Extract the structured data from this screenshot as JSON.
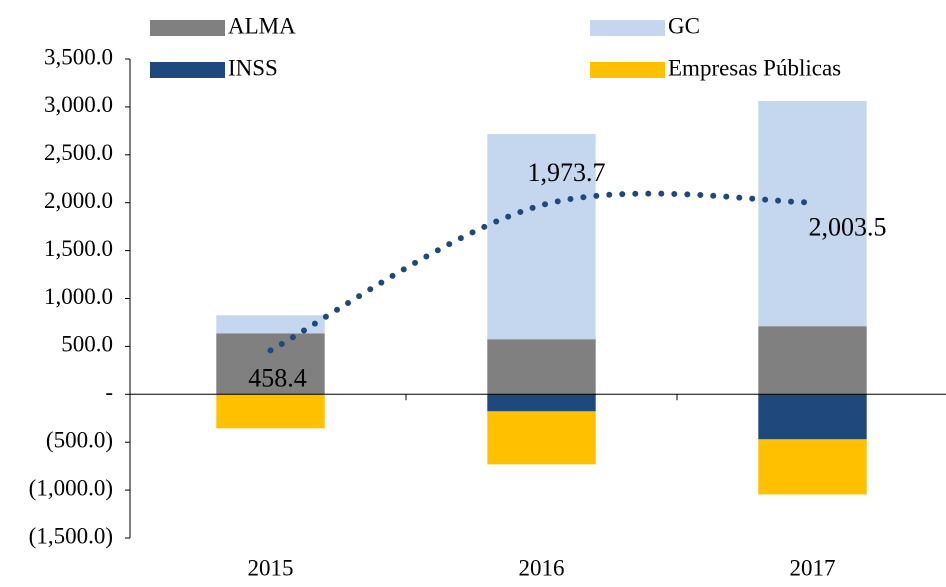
{
  "chart_data": {
    "type": "stacked_bar",
    "categories": [
      "2015",
      "2016",
      "2017"
    ],
    "series": [
      {
        "name": "ALMA",
        "color": "#808080",
        "values": [
          637,
          575,
          711
        ]
      },
      {
        "name": "GC",
        "color": "#c5d7ef",
        "values": [
          188,
          2142,
          2351
        ]
      },
      {
        "name": "INSS",
        "color": "#1f497d",
        "values": [
          0,
          -178,
          -470
        ]
      },
      {
        "name": "Empresas Públicas",
        "color": "#ffc000",
        "values": [
          -355,
          -553,
          -575
        ]
      }
    ],
    "line": {
      "color": "#1f497d",
      "values": [
        458.4,
        1973.7,
        2003.5
      ],
      "value_labels": [
        "458.4",
        "1,973.7",
        "2,003.5"
      ]
    },
    "ylim": [
      -1500,
      3500
    ],
    "yticks": [
      {
        "value": -1500,
        "label": "(1,500.0)"
      },
      {
        "value": -1000,
        "label": "(1,000.0)"
      },
      {
        "value": -500,
        "label": "(500.0)"
      },
      {
        "value": 0,
        "label": "-"
      },
      {
        "value": 500,
        "label": "500.0"
      },
      {
        "value": 1000,
        "label": "1,000.0"
      },
      {
        "value": 1500,
        "label": "1,500.0"
      },
      {
        "value": 2000,
        "label": "2,000.0"
      },
      {
        "value": 2500,
        "label": "2,500.0"
      },
      {
        "value": 3000,
        "label": "3,000.0"
      },
      {
        "value": 3500,
        "label": "3,500.0"
      }
    ],
    "legend": "top"
  }
}
